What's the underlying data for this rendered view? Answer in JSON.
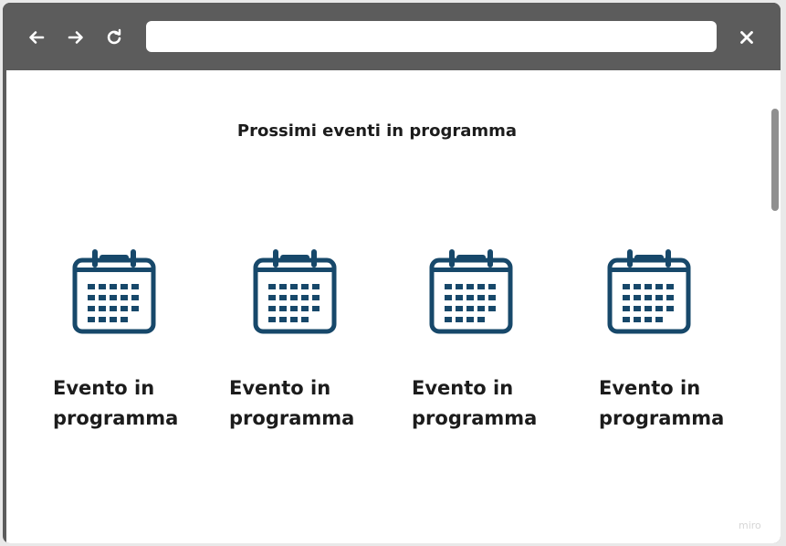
{
  "browser": {
    "url_value": "",
    "back_icon": "arrow-left-icon",
    "forward_icon": "arrow-right-icon",
    "reload_icon": "reload-icon",
    "close_icon": "close-icon"
  },
  "page": {
    "title": "Prossimi eventi in programma",
    "events": [
      {
        "label": "Evento in programma",
        "icon": "calendar-icon"
      },
      {
        "label": "Evento in programma",
        "icon": "calendar-icon"
      },
      {
        "label": "Evento in programma",
        "icon": "calendar-icon"
      },
      {
        "label": "Evento in programma",
        "icon": "calendar-icon"
      }
    ]
  },
  "watermark": "miro",
  "colors": {
    "toolbar": "#5c5c5c",
    "calendar_icon": "#17486a",
    "text": "#1c1c1c"
  }
}
